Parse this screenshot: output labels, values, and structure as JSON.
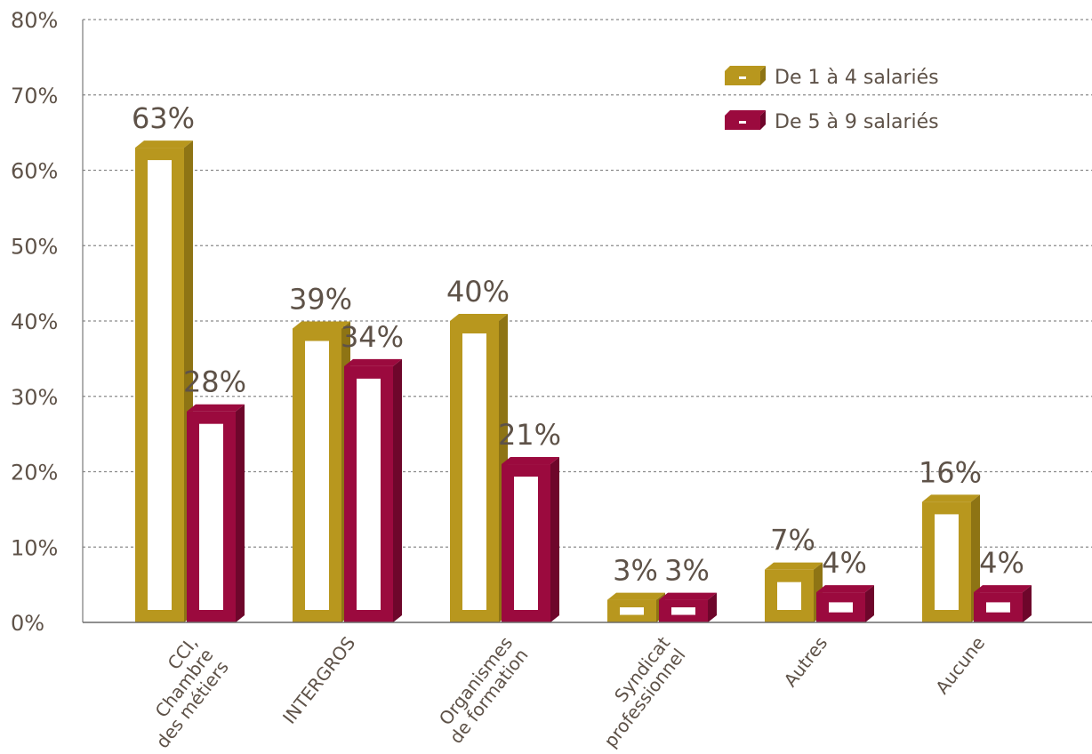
{
  "chart_data": {
    "type": "bar",
    "title": "",
    "xlabel": "",
    "ylabel": "",
    "ylim": [
      0,
      80
    ],
    "yticks": [
      "0%",
      "10%",
      "20%",
      "30%",
      "40%",
      "50%",
      "60%",
      "70%",
      "80%"
    ],
    "grid": true,
    "legend_position": "top-right",
    "categories": [
      [
        "CCI,",
        "Chambre",
        "des métiers"
      ],
      [
        "INTERGROS"
      ],
      [
        "Organismes",
        "de formation"
      ],
      [
        "Syndicat",
        "professionnel"
      ],
      [
        "Autres"
      ],
      [
        "Aucune"
      ]
    ],
    "series": [
      {
        "name": "De 1 à 4 salariés",
        "color": "#b8971e",
        "color_side": "#8e7414",
        "values": [
          63,
          39,
          40,
          3,
          7,
          16
        ],
        "labels": [
          "63%",
          "39%",
          "40%",
          "3%",
          "7%",
          "16%"
        ]
      },
      {
        "name": "De 5 à 9 salariés",
        "color": "#9b0a3e",
        "color_side": "#6e062b",
        "values": [
          28,
          34,
          21,
          3,
          4,
          4
        ],
        "labels": [
          "28%",
          "34%",
          "21%",
          "3%",
          "4%",
          "4%"
        ]
      }
    ]
  }
}
